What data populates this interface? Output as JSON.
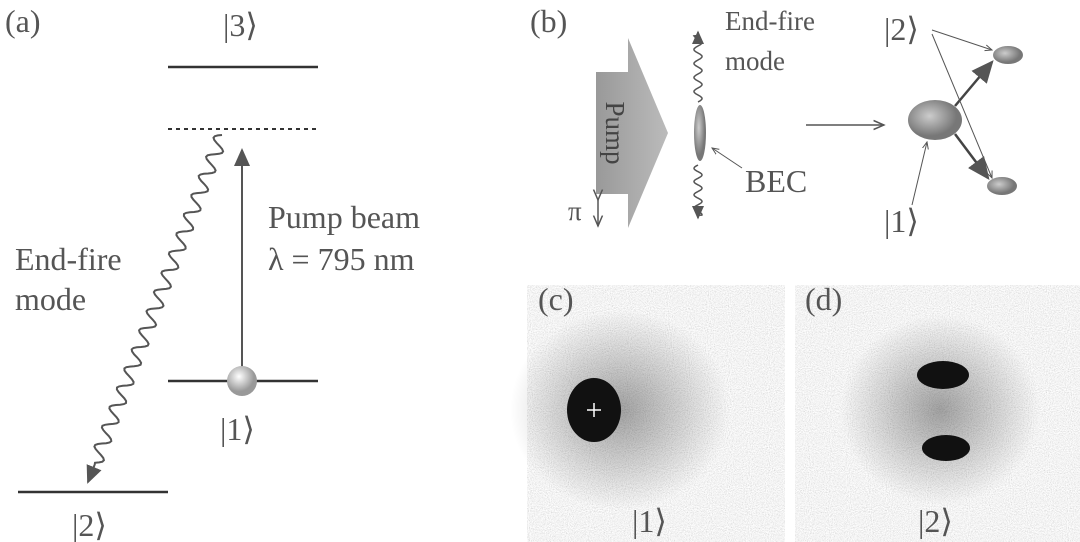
{
  "panel_a": {
    "label": "(a)",
    "level_3": "|3⟩",
    "pump_beam": "Pump beam",
    "wavelength": "λ = 795 nm",
    "end_fire_line1": "End-fire",
    "end_fire_line2": "mode",
    "level_1": "|1⟩",
    "level_2": "|2⟩"
  },
  "panel_b": {
    "label": "(b)",
    "pump": "Pump",
    "end_fire_line1": "End-fire",
    "end_fire_line2": "mode",
    "bec": "BEC",
    "polarization": "π",
    "state_2": "|2⟩",
    "state_1": "|1⟩"
  },
  "panel_c": {
    "label": "(c)",
    "state": "|1⟩"
  },
  "panel_d": {
    "label": "(d)",
    "state": "|2⟩"
  }
}
